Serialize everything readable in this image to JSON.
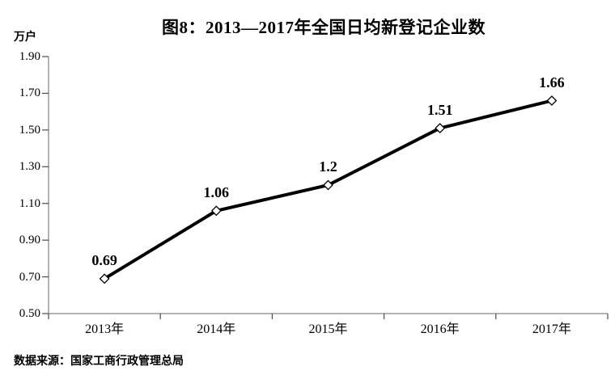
{
  "header": {
    "title": "图8：2013—2017年全国日均新登记企业数",
    "unit_label": "万户"
  },
  "footer": {
    "source": "数据来源：国家工商行政管理总局"
  },
  "colors": {
    "line": "#000000",
    "marker_fill": "#ffffff",
    "marker_stroke": "#000000",
    "axis_line": "#9a9a9a",
    "tick": "#4d4d4d",
    "text": "#000000"
  },
  "chart_data": {
    "type": "line",
    "title": "图8：2013—2017年全国日均新登记企业数",
    "ylabel": "万户",
    "xlabel": "",
    "categories": [
      "2013年",
      "2014年",
      "2015年",
      "2016年",
      "2017年"
    ],
    "values": [
      0.69,
      1.06,
      1.2,
      1.51,
      1.66
    ],
    "point_labels": [
      "0.69",
      "1.06",
      "1.2",
      "1.51",
      "1.66"
    ],
    "ylim": [
      0.5,
      1.9
    ],
    "ytick_step": 0.2,
    "ytick_labels": [
      "1.90",
      "1.70",
      "1.50",
      "1.30",
      "1.10",
      "0.90",
      "0.70",
      "0.50"
    ],
    "grid": false,
    "legend": "none",
    "marker": "diamond",
    "line_width": 4
  }
}
